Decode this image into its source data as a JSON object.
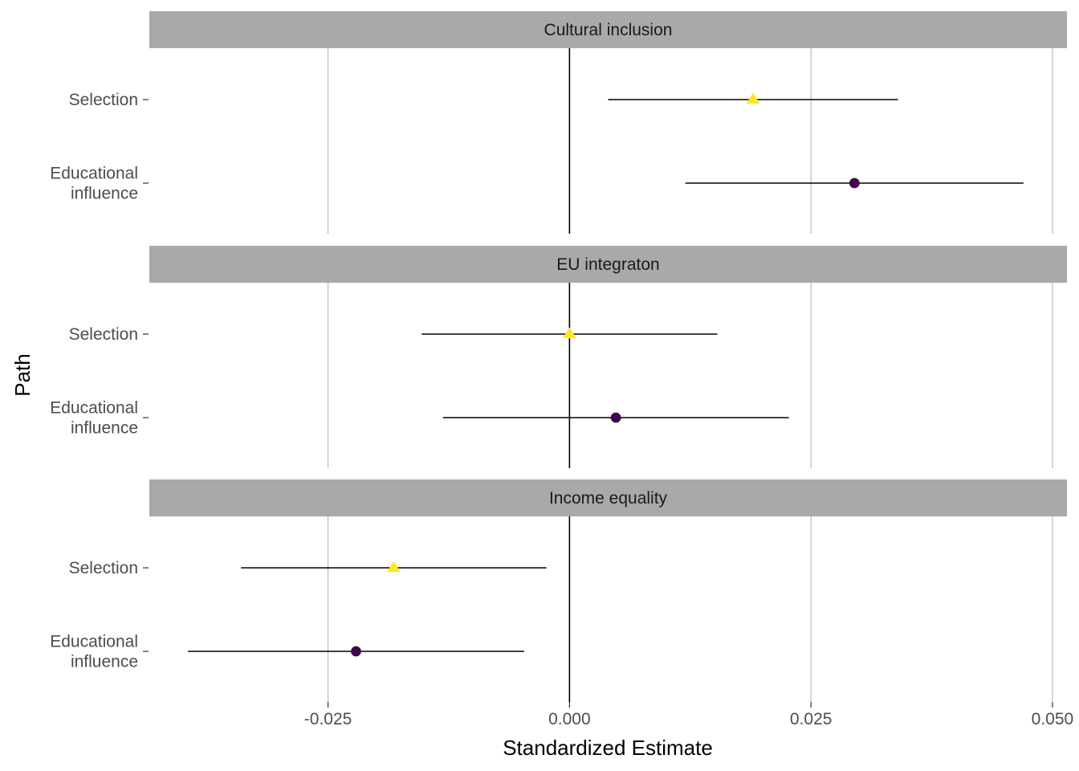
{
  "chart_data": {
    "type": "scatter",
    "xlabel": "Standardized Estimate",
    "ylabel": "Path",
    "xlim": [
      -0.0435,
      0.0515
    ],
    "xticks": [
      -0.025,
      0.0,
      0.025,
      0.05
    ],
    "xtick_labels": [
      "-0.025",
      "0.000",
      "0.025",
      "0.050"
    ],
    "grid": "vertical major",
    "zero_line": 0,
    "colors": {
      "Selection": "#FDE725",
      "Educational influence": "#440154",
      "strip": "#A9A9A9"
    },
    "markers": {
      "Selection": "triangle",
      "Educational influence": "circle"
    },
    "paths": [
      {
        "key": "selection",
        "label_lines": [
          "Selection"
        ]
      },
      {
        "key": "educational",
        "label_lines": [
          "Educational",
          "influence"
        ]
      }
    ],
    "panels": [
      {
        "title": "Cultural inclusion",
        "points": [
          {
            "path": "selection",
            "estimate": 0.019,
            "lower": 0.004,
            "upper": 0.034
          },
          {
            "path": "educational",
            "estimate": 0.0295,
            "lower": 0.012,
            "upper": 0.047
          }
        ]
      },
      {
        "title": "EU integraton",
        "points": [
          {
            "path": "selection",
            "estimate": 0.0,
            "lower": -0.0153,
            "upper": 0.0153
          },
          {
            "path": "educational",
            "estimate": 0.0048,
            "lower": -0.0131,
            "upper": 0.0227
          }
        ]
      },
      {
        "title": "Income equality",
        "points": [
          {
            "path": "selection",
            "estimate": -0.0182,
            "lower": -0.034,
            "upper": -0.0024
          },
          {
            "path": "educational",
            "estimate": -0.0221,
            "lower": -0.0395,
            "upper": -0.0047
          }
        ]
      }
    ]
  }
}
